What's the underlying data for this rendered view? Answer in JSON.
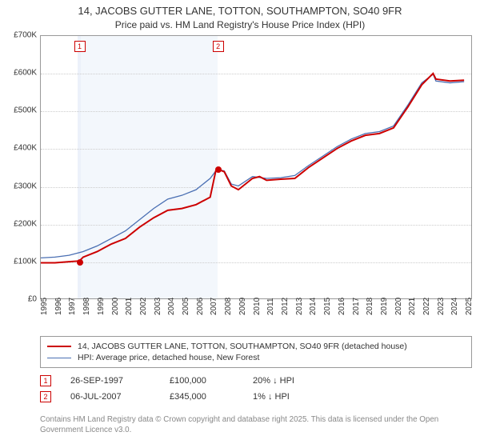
{
  "title": "14, JACOBS GUTTER LANE, TOTTON, SOUTHAMPTON, SO40 9FR",
  "subtitle": "Price paid vs. HM Land Registry's House Price Index (HPI)",
  "chart": {
    "type": "line",
    "background_color": "#ffffff",
    "grid_color": "#cccccc",
    "border_color": "#999999",
    "shade_color": "#eaf0fa",
    "x_start": 1995,
    "x_end": 2025.5,
    "xticks": [
      1995,
      1996,
      1997,
      1998,
      1999,
      2000,
      2001,
      2002,
      2003,
      2004,
      2005,
      2006,
      2007,
      2008,
      2009,
      2010,
      2011,
      2012,
      2013,
      2014,
      2015,
      2016,
      2017,
      2018,
      2019,
      2020,
      2021,
      2022,
      2023,
      2024,
      2025
    ],
    "ylim": [
      0,
      700000
    ],
    "ytick_step": 100000,
    "ylabels": [
      "£0",
      "£100K",
      "£200K",
      "£300K",
      "£400K",
      "£500K",
      "£600K",
      "£700K"
    ],
    "label_fontsize": 10,
    "shade_ranges": [
      {
        "start": 1997.6,
        "end": 1997.85
      },
      {
        "start": 1997.85,
        "end": 2007.5
      }
    ],
    "series": [
      {
        "name": "property",
        "label": "14, JACOBS GUTTER LANE, TOTTON, SOUTHAMPTON, SO40 9FR (detached house)",
        "color": "#cc0000",
        "line_width": 2,
        "points": [
          [
            1995,
            95
          ],
          [
            1996,
            95
          ],
          [
            1997,
            98
          ],
          [
            1997.74,
            100
          ],
          [
            1998,
            110
          ],
          [
            1999,
            125
          ],
          [
            2000,
            145
          ],
          [
            2001,
            160
          ],
          [
            2002,
            190
          ],
          [
            2003,
            215
          ],
          [
            2004,
            235
          ],
          [
            2005,
            240
          ],
          [
            2006,
            250
          ],
          [
            2007,
            270
          ],
          [
            2007.4,
            340
          ],
          [
            2007.52,
            345
          ],
          [
            2008,
            338
          ],
          [
            2008.5,
            300
          ],
          [
            2009,
            290
          ],
          [
            2010,
            320
          ],
          [
            2010.5,
            325
          ],
          [
            2011,
            315
          ],
          [
            2012,
            318
          ],
          [
            2013,
            320
          ],
          [
            2014,
            350
          ],
          [
            2015,
            375
          ],
          [
            2016,
            400
          ],
          [
            2017,
            420
          ],
          [
            2018,
            435
          ],
          [
            2019,
            440
          ],
          [
            2020,
            455
          ],
          [
            2021,
            510
          ],
          [
            2022,
            570
          ],
          [
            2022.8,
            600
          ],
          [
            2023,
            585
          ],
          [
            2024,
            580
          ],
          [
            2025,
            582
          ]
        ]
      },
      {
        "name": "hpi",
        "label": "HPI: Average price, detached house, New Forest",
        "color": "#4a6fb3",
        "line_width": 1.3,
        "points": [
          [
            1995,
            108
          ],
          [
            1996,
            110
          ],
          [
            1997,
            115
          ],
          [
            1998,
            125
          ],
          [
            1999,
            140
          ],
          [
            2000,
            160
          ],
          [
            2001,
            180
          ],
          [
            2002,
            210
          ],
          [
            2003,
            240
          ],
          [
            2004,
            265
          ],
          [
            2005,
            275
          ],
          [
            2006,
            290
          ],
          [
            2007,
            320
          ],
          [
            2007.5,
            345
          ],
          [
            2008,
            340
          ],
          [
            2008.5,
            305
          ],
          [
            2009,
            300
          ],
          [
            2010,
            325
          ],
          [
            2011,
            320
          ],
          [
            2012,
            322
          ],
          [
            2013,
            328
          ],
          [
            2014,
            355
          ],
          [
            2015,
            380
          ],
          [
            2016,
            405
          ],
          [
            2017,
            425
          ],
          [
            2018,
            440
          ],
          [
            2019,
            445
          ],
          [
            2020,
            460
          ],
          [
            2021,
            515
          ],
          [
            2022,
            575
          ],
          [
            2022.8,
            598
          ],
          [
            2023,
            580
          ],
          [
            2024,
            575
          ],
          [
            2025,
            578
          ]
        ]
      }
    ],
    "event_markers": [
      {
        "id": "1",
        "year": 1997.74,
        "value": 100,
        "color": "#cc0000"
      },
      {
        "id": "2",
        "year": 2007.52,
        "value": 345,
        "color": "#cc0000"
      }
    ]
  },
  "legend": {
    "items": [
      {
        "color": "#cc0000",
        "width": 2,
        "label_key": "chart.series.0.label"
      },
      {
        "color": "#4a6fb3",
        "width": 1.3,
        "label_key": "chart.series.1.label"
      }
    ]
  },
  "events": [
    {
      "id": "1",
      "date": "26-SEP-1997",
      "price": "£100,000",
      "delta": "20% ↓ HPI",
      "color": "#cc0000"
    },
    {
      "id": "2",
      "date": "06-JUL-2007",
      "price": "£345,000",
      "delta": "1% ↓ HPI",
      "color": "#cc0000"
    }
  ],
  "footnote": "Contains HM Land Registry data © Crown copyright and database right 2025. This data is licensed under the Open Government Licence v3.0."
}
